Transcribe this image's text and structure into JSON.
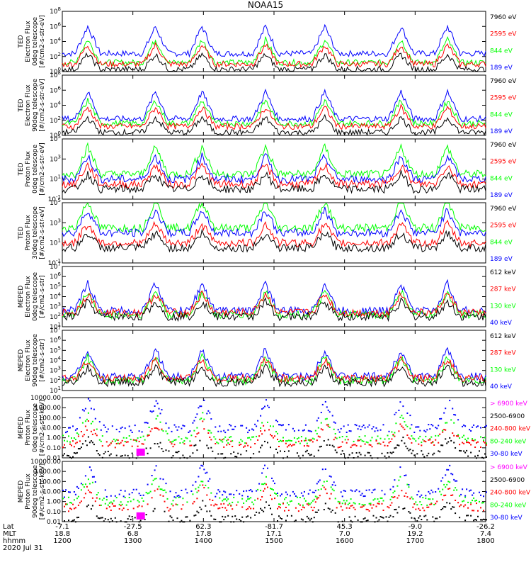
{
  "title": "NOAA15",
  "date_label": "2020 Jul 31",
  "footer_row_labels": [
    "Lat",
    "MLT",
    "hhmm"
  ],
  "footer_columns": [
    {
      "lat": "-7.1",
      "mlt": "18.8",
      "hhmm": "1200"
    },
    {
      "lat": "-27.5",
      "mlt": "6.8",
      "hhmm": "1300"
    },
    {
      "lat": "62.3",
      "mlt": "17.8",
      "hhmm": "1400"
    },
    {
      "lat": "-81.7",
      "mlt": "17.1",
      "hhmm": "1500"
    },
    {
      "lat": "45.3",
      "mlt": "7.0",
      "hhmm": "1600"
    },
    {
      "lat": "-9.0",
      "mlt": "19.2",
      "hhmm": "1700"
    },
    {
      "lat": "-26.2",
      "mlt": "7.4",
      "hhmm": "1800"
    }
  ],
  "colors": {
    "blue": "#0000ff",
    "red": "#ff0000",
    "green": "#00ff00",
    "black": "#000000",
    "magenta": "#ff00ff"
  },
  "chart_data": [
    {
      "type": "line",
      "panel": "ted-e-0",
      "ylabel": [
        "TED",
        "Electron Flux",
        "0deg telescope",
        "[#/cm2-s-str-eV]"
      ],
      "ytick_labels": [
        "10^0",
        "10^2",
        "10^4",
        "10^6",
        "10^8"
      ],
      "ylim_log": [
        0,
        8
      ],
      "legend": [
        {
          "text": "7960 eV",
          "color": "black"
        },
        {
          "text": "2595 eV",
          "color": "red"
        },
        {
          "text": "844 eV",
          "color": "green"
        },
        {
          "text": "189 eV",
          "color": "blue"
        }
      ],
      "series": [
        {
          "color": "blue",
          "base": 2.4
        },
        {
          "color": "green",
          "base": 1.2
        },
        {
          "color": "red",
          "base": 1.0
        },
        {
          "color": "black",
          "base": 0.3
        }
      ]
    },
    {
      "type": "line",
      "panel": "ted-e-90",
      "ylabel": [
        "TED",
        "Electron Flux",
        "90deg telescope",
        "[#/cm2-s-str-eV]"
      ],
      "ytick_labels": [
        "10^0",
        "10^2",
        "10^4",
        "10^6",
        "10^8"
      ],
      "ylim_log": [
        0,
        8
      ],
      "legend": [
        {
          "text": "7960 eV",
          "color": "black"
        },
        {
          "text": "2595 eV",
          "color": "red"
        },
        {
          "text": "844 eV",
          "color": "green"
        },
        {
          "text": "189 eV",
          "color": "blue"
        }
      ],
      "series": [
        {
          "color": "blue",
          "base": 2.2
        },
        {
          "color": "green",
          "base": 1.6
        },
        {
          "color": "red",
          "base": 1.2
        },
        {
          "color": "black",
          "base": 0.4
        }
      ]
    },
    {
      "type": "line",
      "panel": "ted-p-0",
      "ylabel": [
        "TED",
        "Proton Flux",
        "0deg telescope",
        "[#/cm2-s-str-eV]"
      ],
      "ytick_labels": [
        "10^-1",
        "10^1",
        "10^3",
        "10^5"
      ],
      "ylim_log": [
        -1,
        5
      ],
      "legend": [
        {
          "text": "7960 eV",
          "color": "black"
        },
        {
          "text": "2595 eV",
          "color": "red"
        },
        {
          "text": "844 eV",
          "color": "green"
        },
        {
          "text": "189 eV",
          "color": "blue"
        }
      ],
      "series": [
        {
          "color": "green",
          "base": 1.5
        },
        {
          "color": "blue",
          "base": 1.0
        },
        {
          "color": "red",
          "base": 0.5
        },
        {
          "color": "black",
          "base": 0.0
        }
      ]
    },
    {
      "type": "line",
      "panel": "ted-p-30",
      "ylabel": [
        "TED",
        "Proton Flux",
        "30deg telescope",
        "[#/cm2-s-str-eV]"
      ],
      "ytick_labels": [
        "10^-1",
        "10^1",
        "10^3",
        "10^5"
      ],
      "ylim_log": [
        -1,
        5
      ],
      "legend": [
        {
          "text": "7960 eV",
          "color": "black"
        },
        {
          "text": "2595 eV",
          "color": "red"
        },
        {
          "text": "844 eV",
          "color": "green"
        },
        {
          "text": "189 eV",
          "color": "blue"
        }
      ],
      "series": [
        {
          "color": "green",
          "base": 2.5
        },
        {
          "color": "blue",
          "base": 2.0
        },
        {
          "color": "red",
          "base": 1.0
        },
        {
          "color": "black",
          "base": 0.5
        }
      ]
    },
    {
      "type": "line",
      "panel": "meped-e-0",
      "ylabel": [
        "MEPED",
        "Electron Flux",
        "0deg telescope",
        "[#/cm2-s-str]"
      ],
      "ytick_labels": [
        "10^1",
        "10^2",
        "10^3",
        "10^4",
        "10^5",
        "10^6",
        "10^7"
      ],
      "ylim_log": [
        1,
        7
      ],
      "legend": [
        {
          "text": "612 keV",
          "color": "black"
        },
        {
          "text": "287 keV",
          "color": "red"
        },
        {
          "text": "130 keV",
          "color": "green"
        },
        {
          "text": "40 keV",
          "color": "blue"
        }
      ],
      "series": [
        {
          "color": "blue",
          "base": 2.6
        },
        {
          "color": "green",
          "base": 2.2
        },
        {
          "color": "red",
          "base": 2.4
        },
        {
          "color": "black",
          "base": 2.0
        }
      ]
    },
    {
      "type": "line",
      "panel": "meped-e-90",
      "ylabel": [
        "MEPED",
        "Electron Flux",
        "90deg telescope",
        "[#/cm2-s-str]"
      ],
      "ytick_labels": [
        "10^1",
        "10^2",
        "10^3",
        "10^4",
        "10^5",
        "10^6",
        "10^7"
      ],
      "ylim_log": [
        1,
        7
      ],
      "legend": [
        {
          "text": "612 keV",
          "color": "black"
        },
        {
          "text": "287 keV",
          "color": "red"
        },
        {
          "text": "130 keV",
          "color": "green"
        },
        {
          "text": "40 keV",
          "color": "blue"
        }
      ],
      "series": [
        {
          "color": "blue",
          "base": 2.4
        },
        {
          "color": "green",
          "base": 2.0
        },
        {
          "color": "red",
          "base": 2.2
        },
        {
          "color": "black",
          "base": 1.8
        }
      ]
    },
    {
      "type": "line",
      "panel": "meped-p-0",
      "ylabel": [
        "MEPED",
        "Proton Flux",
        "0deg telescope",
        "[#/cm2-s-str-keV]"
      ],
      "ytick_labels": [
        "0.01",
        "0.10",
        "1.00",
        "10.00",
        "100.00",
        "1000.00",
        "10000.00"
      ],
      "ylim_log": [
        -2,
        4
      ],
      "legend": [
        {
          "text": "> 6900 keV",
          "color": "magenta"
        },
        {
          "text": "2500-6900",
          "color": "black"
        },
        {
          "text": "240-800 keV",
          "color": "red"
        },
        {
          "text": "80-240 keV",
          "color": "green"
        },
        {
          "text": "30-80 keV",
          "color": "blue"
        }
      ],
      "series": [
        {
          "color": "blue",
          "base": 1.0
        },
        {
          "color": "green",
          "base": -0.1
        },
        {
          "color": "red",
          "base": -0.5
        },
        {
          "color": "black",
          "base": -1.6
        }
      ]
    },
    {
      "type": "line",
      "panel": "meped-p-90",
      "ylabel": [
        "MEPED",
        "Proton Flux",
        "90deg telescope",
        "[#/cm2-s-str-keV]"
      ],
      "ytick_labels": [
        "0.01",
        "0.10",
        "1.00",
        "10.00",
        "100.00",
        "1000.00",
        "10000.00"
      ],
      "ylim_log": [
        -2,
        4
      ],
      "legend": [
        {
          "text": "> 6900 keV",
          "color": "magenta"
        },
        {
          "text": "2500-6900",
          "color": "black"
        },
        {
          "text": "240-800 keV",
          "color": "red"
        },
        {
          "text": "80-240 keV",
          "color": "green"
        },
        {
          "text": "30-80 keV",
          "color": "blue"
        }
      ],
      "series": [
        {
          "color": "blue",
          "base": 0.9
        },
        {
          "color": "green",
          "base": 0.1
        },
        {
          "color": "red",
          "base": -0.5
        },
        {
          "color": "black",
          "base": -1.7
        }
      ]
    }
  ]
}
